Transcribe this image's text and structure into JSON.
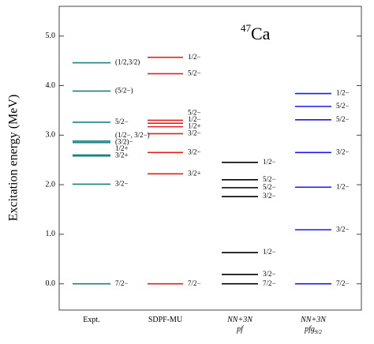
{
  "chart_data": {
    "type": "level-scheme",
    "ylabel": "Excitation energy (MeV)",
    "annotation": {
      "mass": "47",
      "symbol": "Ca"
    },
    "ylim": [
      -0.53,
      5.6
    ],
    "yticks": [
      {
        "value": 0,
        "label": "0.0"
      },
      {
        "value": 1,
        "label": "1.0"
      },
      {
        "value": 2,
        "label": "2.0"
      },
      {
        "value": 3,
        "label": "3.0"
      },
      {
        "value": 4,
        "label": "4.0"
      },
      {
        "value": 5,
        "label": "5.0"
      }
    ],
    "series": [
      {
        "name": "Expt.",
        "color": "#1a8080",
        "values": [
          0.0,
          2.01,
          2.58,
          2.6,
          2.85,
          2.88,
          3.26,
          3.89,
          4.46
        ],
        "labels": [
          "7/2−",
          "3/2−",
          "3/2+",
          "1/2+",
          "(3/2)−",
          "(1/2−, 3/2−)",
          "5/2−",
          "(5/2−)",
          "(1/2,3/2)"
        ]
      },
      {
        "name": "SDPF-MU",
        "color": "#e02020",
        "values": [
          0.0,
          2.22,
          2.65,
          3.03,
          3.17,
          3.24,
          3.3,
          4.24,
          4.57
        ],
        "labels": [
          "7/2−",
          "3/2+",
          "3/2−",
          "3/2−",
          "1/2+",
          "1/2−",
          "5/2−",
          "5/2−",
          "1/2−"
        ]
      },
      {
        "name": "NN+3N",
        "subname": "pf",
        "color": "#000000",
        "values": [
          0.0,
          0.19,
          0.63,
          1.76,
          1.94,
          2.1,
          2.45
        ],
        "labels": [
          "7/2−",
          "3/2−",
          "1/2−",
          "3/2−",
          "5/2−",
          "5/2−",
          "1/2−"
        ]
      },
      {
        "name": "NN+3N",
        "subname": "pfg",
        "subscript": "9/2",
        "color": "#1a1aee",
        "values": [
          0.0,
          1.09,
          1.95,
          2.65,
          3.31,
          3.58,
          3.84
        ],
        "labels": [
          "7/2−",
          "3/2−",
          "1/2−",
          "3/2−",
          "5/2−",
          "5/2−",
          "1/2−"
        ]
      }
    ]
  }
}
